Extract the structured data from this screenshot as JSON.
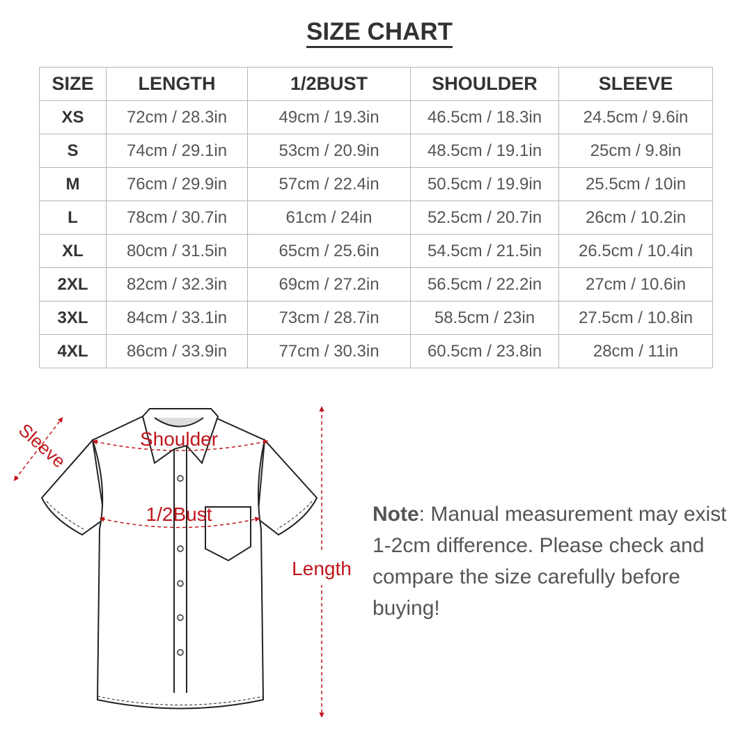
{
  "title": "SIZE CHART",
  "table": {
    "headers": [
      "SIZE",
      "LENGTH",
      "1/2BUST",
      "SHOULDER",
      "SLEEVE"
    ],
    "rows": [
      [
        "XS",
        "72cm / 28.3in",
        "49cm / 19.3in",
        "46.5cm / 18.3in",
        "24.5cm / 9.6in"
      ],
      [
        "S",
        "74cm / 29.1in",
        "53cm / 20.9in",
        "48.5cm / 19.1in",
        "25cm / 9.8in"
      ],
      [
        "M",
        "76cm / 29.9in",
        "57cm / 22.4in",
        "50.5cm / 19.9in",
        "25.5cm / 10in"
      ],
      [
        "L",
        "78cm / 30.7in",
        "61cm / 24in",
        "52.5cm / 20.7in",
        "26cm / 10.2in"
      ],
      [
        "XL",
        "80cm / 31.5in",
        "65cm / 25.6in",
        "54.5cm / 21.5in",
        "26.5cm / 10.4in"
      ],
      [
        "2XL",
        "82cm / 32.3in",
        "69cm / 27.2in",
        "56.5cm / 22.2in",
        "27cm / 10.6in"
      ],
      [
        "3XL",
        "84cm / 33.1in",
        "73cm / 28.7in",
        "58.5cm / 23in",
        "27.5cm / 10.8in"
      ],
      [
        "4XL",
        "86cm / 33.9in",
        "77cm / 30.3in",
        "60.5cm / 23.8in",
        "28cm / 11in"
      ]
    ]
  },
  "diagram": {
    "labels": {
      "sleeve": "Sleeve",
      "shoulder": "Shoulder",
      "bust": "1/2Bust",
      "length": "Length"
    },
    "accent_color": "#c0161d"
  },
  "note": {
    "label": "Note",
    "text": ": Manual measurement may exist 1-2cm difference. Please check and compare the size carefully before buying!"
  }
}
